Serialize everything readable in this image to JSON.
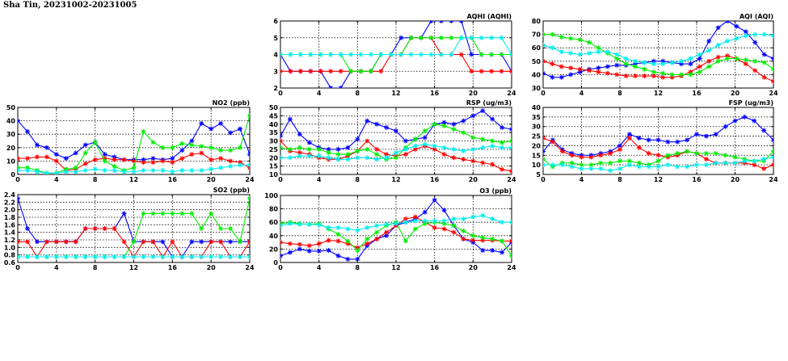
{
  "page": {
    "title": "Sha Tin, 20231002-20231005"
  },
  "colors": {
    "blue": "#0000ff",
    "red": "#ff0000",
    "green": "#00ee00",
    "cyan": "#00eeee"
  },
  "chart_data": [
    {
      "id": "aqhi",
      "type": "line",
      "title": "AQHI (AQHI)",
      "xlim": [
        0,
        24
      ],
      "xticks": [
        0,
        4,
        8,
        12,
        16,
        20,
        24
      ],
      "ylim": [
        2,
        6
      ],
      "yticks": [
        2,
        3,
        4,
        5,
        6
      ],
      "ytick_labels": [
        "2",
        "3",
        "4",
        "5",
        "6"
      ],
      "grid": true,
      "marker": "star",
      "series": [
        {
          "color": "blue",
          "values": [
            4,
            3,
            3,
            3,
            3,
            2,
            2,
            3,
            3,
            3,
            4,
            4,
            5,
            5,
            5,
            6,
            6,
            6,
            6,
            4,
            4,
            4,
            4,
            3
          ]
        },
        {
          "color": "red",
          "values": [
            3,
            3,
            3,
            3,
            3,
            3,
            3,
            3,
            3,
            3,
            3,
            4,
            4,
            5,
            5,
            5,
            4,
            4,
            4,
            3,
            3,
            3,
            3,
            3
          ]
        },
        {
          "color": "green",
          "values": [
            4,
            4,
            4,
            4,
            4,
            4,
            4,
            3,
            3,
            3,
            4,
            4,
            4,
            5,
            5,
            5,
            5,
            5,
            5,
            5,
            4,
            4,
            4,
            4
          ]
        },
        {
          "color": "cyan",
          "values": [
            4,
            4,
            4,
            4,
            4,
            4,
            4,
            4,
            4,
            4,
            4,
            4,
            4,
            4,
            4,
            4,
            4,
            4,
            5,
            5,
            5,
            5,
            5,
            4
          ]
        }
      ]
    },
    {
      "id": "aqi",
      "type": "line",
      "title": "AQI (AQI)",
      "xlim": [
        0,
        24
      ],
      "xticks": [
        0,
        4,
        8,
        12,
        16,
        20,
        24
      ],
      "ylim": [
        30,
        80
      ],
      "yticks": [
        30,
        40,
        50,
        60,
        70,
        80
      ],
      "ytick_labels": [
        "30",
        "40",
        "50",
        "60",
        "70",
        "80"
      ],
      "grid": true,
      "marker": "star",
      "series": [
        {
          "color": "blue",
          "values": [
            41,
            38,
            38,
            40,
            42,
            44,
            45,
            46,
            47,
            47,
            48,
            49,
            50,
            50,
            49,
            48,
            48,
            52,
            65,
            75,
            80,
            76,
            72,
            64,
            55,
            52
          ]
        },
        {
          "color": "red",
          "values": [
            50,
            48,
            46,
            45,
            44,
            43,
            42,
            41,
            40,
            39,
            39,
            39,
            39,
            38,
            38,
            39,
            42,
            46,
            50,
            53,
            54,
            52,
            48,
            43,
            38,
            35
          ]
        },
        {
          "color": "green",
          "values": [
            70,
            70,
            68,
            67,
            66,
            64,
            60,
            56,
            52,
            48,
            46,
            44,
            42,
            41,
            40,
            40,
            40,
            42,
            46,
            50,
            52,
            52,
            51,
            50,
            49,
            44
          ]
        },
        {
          "color": "cyan",
          "values": [
            62,
            60,
            57,
            56,
            55,
            56,
            57,
            57,
            55,
            52,
            50,
            49,
            48,
            48,
            49,
            50,
            52,
            55,
            58,
            62,
            65,
            67,
            69,
            70,
            70,
            69
          ]
        }
      ]
    },
    {
      "id": "no2",
      "type": "line",
      "title": "NO2 (ppb)",
      "xlim": [
        0,
        24
      ],
      "xticks": [
        0,
        4,
        8,
        12,
        16,
        20,
        24
      ],
      "ylim": [
        0,
        50
      ],
      "yticks": [
        0,
        10,
        20,
        30,
        40,
        50
      ],
      "ytick_labels": [
        "0",
        "10",
        "20",
        "30",
        "40",
        "50"
      ],
      "grid": true,
      "marker": "star",
      "series": [
        {
          "color": "blue",
          "values": [
            40,
            32,
            22,
            20,
            15,
            12,
            16,
            22,
            24,
            15,
            13,
            11,
            11,
            11,
            12,
            11,
            12,
            18,
            25,
            38,
            34,
            38,
            31,
            34,
            15
          ]
        },
        {
          "color": "red",
          "values": [
            12,
            12,
            13,
            13,
            10,
            3,
            4,
            8,
            11,
            12,
            11,
            11,
            10,
            9,
            9,
            10,
            9,
            12,
            15,
            16,
            11,
            12,
            10,
            9,
            5
          ]
        },
        {
          "color": "green",
          "values": [
            5,
            5,
            3,
            1,
            1,
            4,
            5,
            16,
            24,
            10,
            6,
            3,
            5,
            32,
            24,
            20,
            20,
            23,
            22,
            21,
            20,
            18,
            18,
            20,
            44
          ]
        },
        {
          "color": "cyan",
          "values": [
            3,
            3,
            2,
            1,
            1,
            2,
            2,
            3,
            4,
            3,
            3,
            2,
            2,
            3,
            3,
            3,
            2,
            3,
            3,
            3,
            4,
            5,
            6,
            7,
            7
          ]
        }
      ]
    },
    {
      "id": "rsp",
      "type": "line",
      "title": "RSP (ug/m3)",
      "xlim": [
        0,
        24
      ],
      "xticks": [
        0,
        4,
        8,
        12,
        16,
        20,
        24
      ],
      "ylim": [
        10,
        50
      ],
      "yticks": [
        10,
        15,
        20,
        25,
        30,
        35,
        40,
        45,
        50
      ],
      "ytick_labels": [
        "10",
        "15",
        "20",
        "25",
        "30",
        "35",
        "40",
        "45",
        "50"
      ],
      "grid": true,
      "marker": "star",
      "series": [
        {
          "color": "blue",
          "values": [
            33,
            43,
            34,
            29,
            26,
            25,
            25,
            26,
            31,
            42,
            40,
            38,
            36,
            30,
            31,
            32,
            40,
            41,
            40,
            42,
            45,
            48,
            43,
            38,
            37
          ]
        },
        {
          "color": "red",
          "values": [
            30,
            24,
            23,
            22,
            20,
            19,
            19,
            21,
            24,
            30,
            25,
            22,
            21,
            22,
            25,
            27,
            25,
            22,
            20,
            19,
            18,
            17,
            16,
            13,
            12
          ]
        },
        {
          "color": "green",
          "values": [
            26,
            25,
            26,
            25,
            25,
            23,
            22,
            22,
            24,
            25,
            22,
            19,
            20,
            26,
            31,
            36,
            40,
            39,
            37,
            35,
            32,
            31,
            30,
            29,
            30
          ]
        },
        {
          "color": "cyan",
          "values": [
            20,
            20,
            21,
            21,
            21,
            20,
            19,
            19,
            20,
            20,
            19,
            20,
            23,
            25,
            27,
            28,
            27,
            26,
            25,
            24,
            25,
            26,
            27,
            26,
            26
          ]
        }
      ]
    },
    {
      "id": "fsp",
      "type": "line",
      "title": "FSP (ug/m3)",
      "xlim": [
        0,
        24
      ],
      "xticks": [
        0,
        4,
        8,
        12,
        16,
        20,
        24
      ],
      "ylim": [
        5,
        40
      ],
      "yticks": [
        5,
        10,
        15,
        20,
        25,
        30,
        35,
        40
      ],
      "ytick_labels": [
        "5",
        "10",
        "15",
        "20",
        "25",
        "30",
        "35",
        "40"
      ],
      "grid": true,
      "marker": "star",
      "series": [
        {
          "color": "blue",
          "values": [
            17,
            23,
            18,
            16,
            15,
            15,
            16,
            17,
            20,
            26,
            24,
            23,
            23,
            22,
            22,
            23,
            26,
            25,
            26,
            30,
            33,
            35,
            33,
            28,
            23
          ]
        },
        {
          "color": "red",
          "values": [
            24,
            22,
            17,
            15,
            14,
            14,
            15,
            16,
            18,
            24,
            19,
            16,
            15,
            14,
            15,
            17,
            16,
            13,
            11,
            11,
            11,
            11,
            10,
            8,
            10
          ]
        },
        {
          "color": "green",
          "values": [
            13,
            9,
            11,
            11,
            10,
            10,
            11,
            11,
            12,
            12,
            11,
            10,
            12,
            15,
            16,
            17,
            16,
            16,
            16,
            15,
            14,
            13,
            12,
            12,
            17
          ]
        },
        {
          "color": "cyan",
          "values": [
            10,
            10,
            10,
            9,
            8,
            8,
            8,
            7,
            8,
            10,
            9,
            9,
            9,
            10,
            9,
            9,
            10,
            10,
            11,
            11,
            11,
            12,
            12,
            13,
            14
          ]
        }
      ]
    },
    {
      "id": "so2",
      "type": "line",
      "title": "SO2 (ppb)",
      "xlim": [
        0,
        24
      ],
      "xticks": [
        0,
        4,
        8,
        12,
        16,
        20,
        24
      ],
      "ylim": [
        0.6,
        2.4
      ],
      "yticks": [
        0.6,
        0.8,
        1.0,
        1.2,
        1.4,
        1.6,
        1.8,
        2.0,
        2.2,
        2.4
      ],
      "ytick_labels": [
        "0.6",
        "0.8",
        "1.0",
        "1.2",
        "1.4",
        "1.6",
        "1.8",
        "2.0",
        "2.2",
        "2.4"
      ],
      "grid": true,
      "marker": "star",
      "series": [
        {
          "color": "blue",
          "values": [
            2.3,
            1.5,
            1.15,
            1.15,
            1.15,
            1.15,
            1.15,
            1.5,
            1.5,
            1.5,
            1.5,
            1.9,
            1.15,
            1.15,
            1.15,
            1.15,
            0.75,
            0.75,
            1.15,
            1.15,
            1.15,
            1.15,
            1.15,
            1.15,
            1.15
          ]
        },
        {
          "color": "red",
          "values": [
            1.15,
            1.15,
            0.75,
            1.15,
            1.15,
            1.15,
            1.15,
            1.5,
            1.5,
            1.5,
            1.5,
            1.15,
            0.75,
            1.15,
            1.15,
            0.75,
            1.15,
            0.75,
            0.75,
            0.75,
            1.15,
            1.15,
            0.75,
            0.75,
            1.15
          ]
        },
        {
          "color": "green",
          "values": [
            0.75,
            0.75,
            0.75,
            0.75,
            0.75,
            0.75,
            0.75,
            0.75,
            0.75,
            0.75,
            0.75,
            0.75,
            1.15,
            1.9,
            1.9,
            1.9,
            1.9,
            1.9,
            1.9,
            1.5,
            1.9,
            1.5,
            1.5,
            1.15,
            2.3
          ]
        },
        {
          "color": "cyan",
          "values": [
            0.75,
            0.75,
            0.75,
            0.75,
            0.75,
            0.75,
            0.75,
            0.75,
            0.75,
            0.75,
            0.75,
            0.75,
            0.75,
            0.75,
            0.75,
            0.75,
            0.75,
            0.75,
            0.75,
            0.75,
            0.75,
            0.75,
            0.75,
            0.75,
            0.75
          ]
        }
      ]
    },
    {
      "id": "o3",
      "type": "line",
      "title": "O3 (ppb)",
      "xlim": [
        0,
        24
      ],
      "xticks": [
        0,
        4,
        8,
        12,
        16,
        20,
        24
      ],
      "ylim": [
        0,
        100
      ],
      "yticks": [
        0,
        20,
        40,
        60,
        80,
        100
      ],
      "ytick_labels": [
        "0",
        "20",
        "40",
        "60",
        "80",
        "100"
      ],
      "grid": true,
      "marker": "star",
      "series": [
        {
          "color": "blue",
          "values": [
            10,
            15,
            20,
            17,
            17,
            18,
            10,
            5,
            5,
            25,
            35,
            40,
            55,
            60,
            65,
            75,
            93,
            78,
            55,
            35,
            30,
            18,
            18,
            15,
            30
          ]
        },
        {
          "color": "red",
          "values": [
            30,
            28,
            27,
            25,
            28,
            33,
            32,
            28,
            22,
            28,
            35,
            45,
            55,
            65,
            68,
            60,
            52,
            50,
            45,
            35,
            33,
            33,
            33,
            32,
            32
          ]
        },
        {
          "color": "green",
          "values": [
            58,
            60,
            58,
            57,
            58,
            50,
            42,
            32,
            18,
            35,
            45,
            55,
            60,
            32,
            50,
            58,
            60,
            58,
            55,
            47,
            40,
            37,
            35,
            32,
            10
          ]
        },
        {
          "color": "cyan",
          "values": [
            55,
            58,
            57,
            57,
            56,
            52,
            52,
            50,
            48,
            52,
            55,
            57,
            58,
            60,
            62,
            62,
            62,
            62,
            65,
            65,
            68,
            70,
            65,
            60,
            60
          ]
        }
      ]
    }
  ]
}
